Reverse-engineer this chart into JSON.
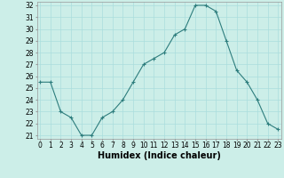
{
  "x": [
    0,
    1,
    2,
    3,
    4,
    5,
    6,
    7,
    8,
    9,
    10,
    11,
    12,
    13,
    14,
    15,
    16,
    17,
    18,
    19,
    20,
    21,
    22,
    23
  ],
  "y": [
    25.5,
    25.5,
    23.0,
    22.5,
    21.0,
    21.0,
    22.5,
    23.0,
    24.0,
    25.5,
    27.0,
    27.5,
    28.0,
    29.5,
    30.0,
    32.0,
    32.0,
    31.5,
    29.0,
    26.5,
    25.5,
    24.0,
    22.0,
    21.5
  ],
  "line_color": "#2d7d7d",
  "marker": "+",
  "marker_size": 3,
  "marker_linewidth": 0.8,
  "bg_color": "#cceee8",
  "grid_color": "#aadddd",
  "xlabel": "Humidex (Indice chaleur)",
  "ylim_min": 21,
  "ylim_max": 32,
  "xlim_min": 0,
  "xlim_max": 23,
  "yticks": [
    21,
    22,
    23,
    24,
    25,
    26,
    27,
    28,
    29,
    30,
    31,
    32
  ],
  "xticks": [
    0,
    1,
    2,
    3,
    4,
    5,
    6,
    7,
    8,
    9,
    10,
    11,
    12,
    13,
    14,
    15,
    16,
    17,
    18,
    19,
    20,
    21,
    22,
    23
  ],
  "tick_label_fontsize": 5.5,
  "xlabel_fontsize": 7,
  "linewidth": 0.8
}
